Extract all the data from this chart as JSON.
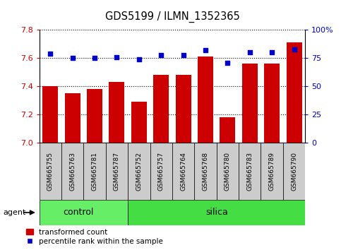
{
  "title": "GDS5199 / ILMN_1352365",
  "samples": [
    "GSM665755",
    "GSM665763",
    "GSM665781",
    "GSM665787",
    "GSM665752",
    "GSM665757",
    "GSM665764",
    "GSM665768",
    "GSM665780",
    "GSM665783",
    "GSM665789",
    "GSM665790"
  ],
  "groups": [
    "control",
    "control",
    "control",
    "control",
    "silica",
    "silica",
    "silica",
    "silica",
    "silica",
    "silica",
    "silica",
    "silica"
  ],
  "bar_values": [
    7.4,
    7.35,
    7.38,
    7.43,
    7.29,
    7.48,
    7.48,
    7.61,
    7.18,
    7.56,
    7.56,
    7.71
  ],
  "percentile_values": [
    79,
    75,
    75,
    76,
    74,
    78,
    78,
    82,
    71,
    80,
    80,
    83
  ],
  "ylim_left": [
    7.0,
    7.8
  ],
  "ylim_right": [
    0,
    100
  ],
  "yticks_left": [
    7.0,
    7.2,
    7.4,
    7.6,
    7.8
  ],
  "yticks_right": [
    0,
    25,
    50,
    75,
    100
  ],
  "bar_color": "#cc0000",
  "dot_color": "#0000cc",
  "control_color": "#66ee66",
  "silica_color": "#44dd44",
  "group_bar_bg": "#cccccc",
  "grid_color": "#000000",
  "bar_width": 0.7,
  "agent_label": "agent",
  "legend_items": [
    "transformed count",
    "percentile rank within the sample"
  ],
  "n_control": 4,
  "n_silica": 8
}
